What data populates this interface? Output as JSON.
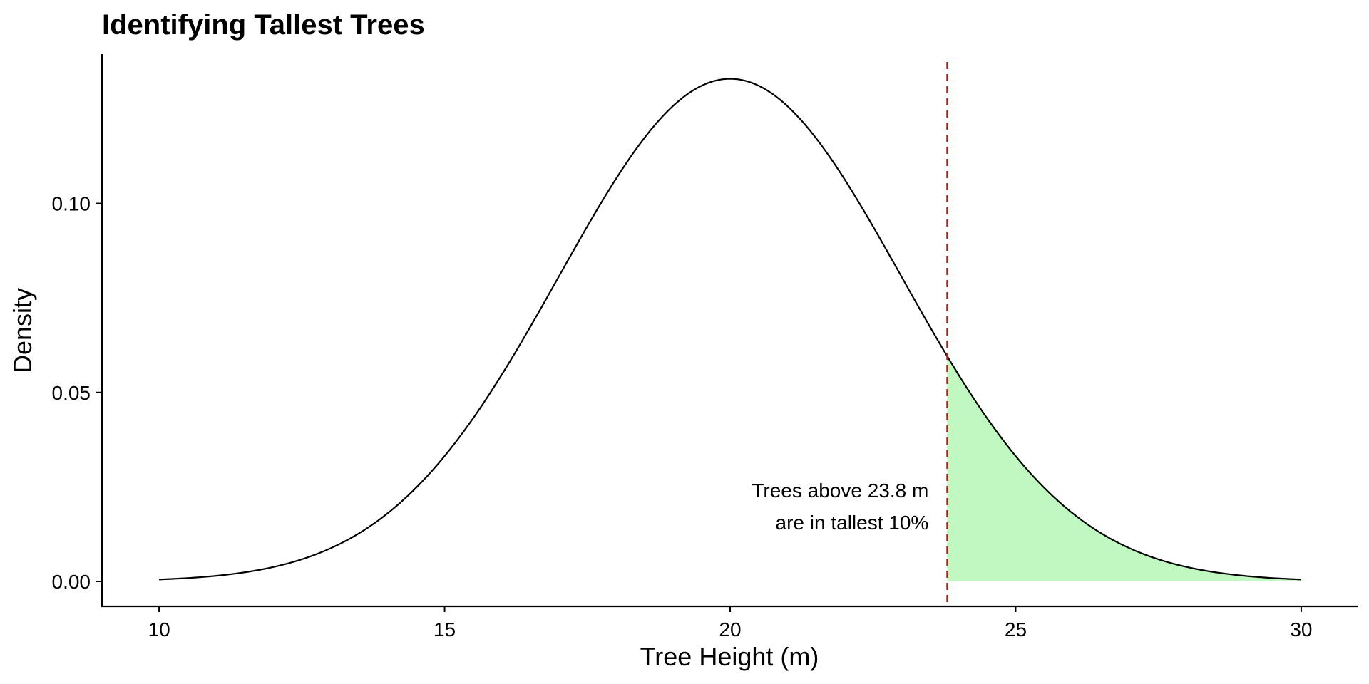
{
  "chart_data": {
    "type": "area",
    "title": "Identifying Tallest Trees",
    "xlabel": "Tree Height (m)",
    "ylabel": "Density",
    "xlim": [
      9,
      31
    ],
    "ylim": [
      -0.0066,
      0.1395
    ],
    "x_ticks": [
      10,
      15,
      20,
      25,
      30
    ],
    "x_tick_labels": [
      "10",
      "15",
      "20",
      "25",
      "30"
    ],
    "y_ticks": [
      0.0,
      0.05,
      0.1
    ],
    "y_tick_labels": [
      "0.00",
      "0.05",
      "0.10"
    ],
    "grid": false,
    "legend": "none",
    "distribution": {
      "name": "normal",
      "mean": 20,
      "sd": 3,
      "x_range": [
        10,
        30
      ]
    },
    "threshold": {
      "x": 23.8,
      "style": "dashed",
      "color": "#ff0000"
    },
    "shaded_region": {
      "x_from": 23.8,
      "x_to": 30,
      "color": "#c1f7c1"
    },
    "annotation": {
      "line1": "Trees above 23.8 m",
      "line2": "are in tallest 10%",
      "x": 23.5,
      "align": "right"
    },
    "colors": {
      "curve": "#000000",
      "axis": "#000000"
    }
  }
}
